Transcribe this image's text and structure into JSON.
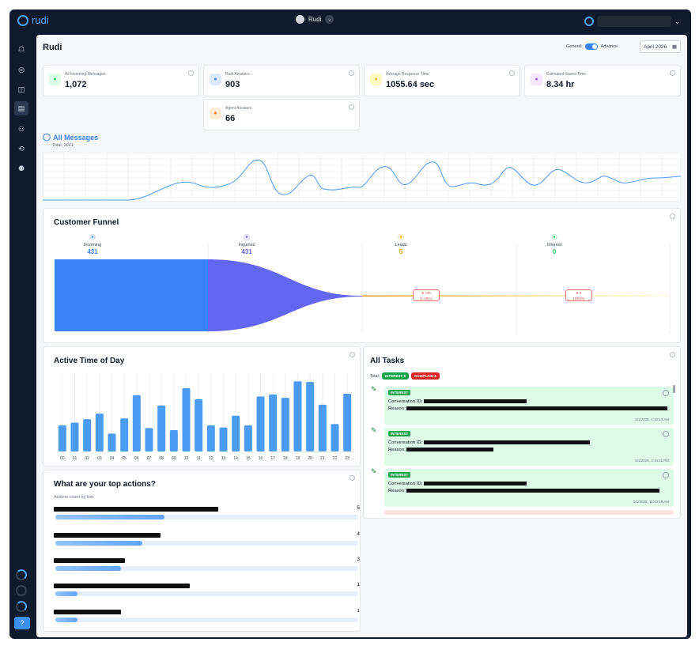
{
  "app": {
    "brand": "rudi",
    "bot_name": "Rudi"
  },
  "page": {
    "title": "Rudi",
    "toggle_left": "General",
    "toggle_right": "Advance",
    "date": "April 2026"
  },
  "stats": [
    {
      "label": "All Incoming Messages",
      "value": "1,072",
      "icon": "chat-icon",
      "color": "#22c55e",
      "bg": "#dcfce7"
    },
    {
      "label": "Rudi Answers",
      "value": "903",
      "icon": "bot-icon",
      "color": "#3b82f6",
      "bg": "#dbeafe"
    },
    {
      "label": "Average Response Time",
      "value": "1055.64 sec",
      "icon": "stopwatch-icon",
      "color": "#eab308",
      "bg": "#fef9c3"
    },
    {
      "label": "Estimated Saved Time",
      "value": "8.34 hr",
      "icon": "shield-icon",
      "color": "#a855f7",
      "bg": "#f3e8ff"
    },
    {
      "label": "Agent Answers",
      "value": "66",
      "icon": "users-icon",
      "color": "#f97316",
      "bg": "#ffedd5"
    }
  ],
  "all_messages": {
    "title": "All Messages",
    "total": "Total: 2041"
  },
  "funnel": {
    "title": "Customer Funnel",
    "stages": [
      {
        "label": "Incoming",
        "value": "431",
        "color": "#3b82f6",
        "icon": "inbox-icon"
      },
      {
        "label": "Inquiries",
        "value": "431",
        "color": "#6366f1",
        "icon": "question-icon"
      },
      {
        "label": "Leads",
        "value": "5",
        "color": "#f59e0b",
        "icon": "lead-icon"
      },
      {
        "label": "Interest",
        "value": "0",
        "color": "#22c55e",
        "icon": "heart-icon"
      }
    ],
    "drops": [
      {
        "line1": "● +26",
        "line2": "(1.16%)"
      },
      {
        "line1": "● 5",
        "line2": "(100%)"
      }
    ]
  },
  "active_time": {
    "title": "Active Time of Day",
    "chart_data": {
      "type": "bar",
      "categories": [
        "00",
        "01",
        "02",
        "03",
        "04",
        "05",
        "06",
        "07",
        "08",
        "09",
        "10",
        "11",
        "12",
        "13",
        "14",
        "15",
        "16",
        "17",
        "18",
        "19",
        "20",
        "21",
        "22",
        "23"
      ],
      "values": [
        38,
        42,
        47,
        55,
        26,
        48,
        82,
        34,
        67,
        31,
        92,
        76,
        38,
        35,
        52,
        38,
        80,
        83,
        78,
        102,
        101,
        68,
        40,
        84
      ],
      "ylim": [
        0,
        115
      ]
    }
  },
  "tasks": {
    "title": "All Tasks",
    "total_label": "Total:",
    "interest_pill": "INTEREST",
    "interest_count": "8",
    "complain_pill": "COMPLAIN",
    "complain_count": "6",
    "items": [
      {
        "tag": "INTEREST",
        "conv_label": "Conversation ID:",
        "reason_label": "Reason:",
        "date": "5/1/2026, 1:32:13 AM"
      },
      {
        "tag": "INTEREST",
        "conv_label": "Conversation ID:",
        "reason_label": "Reason:",
        "date": "5/1/2026, 2:44:11 PM"
      },
      {
        "tag": "INTEREST",
        "conv_label": "Conversation ID:",
        "reason_label": "Reason:",
        "date": "5/1/2026, 11:43:19 AM"
      }
    ]
  },
  "top_actions": {
    "title": "What are your top actions?",
    "subtitle": "Actions count by link",
    "items": [
      {
        "count": "5",
        "value": 5
      },
      {
        "count": "4",
        "value": 4
      },
      {
        "count": "3",
        "value": 3
      },
      {
        "count": "1",
        "value": 1
      },
      {
        "count": "1",
        "value": 1
      }
    ]
  }
}
